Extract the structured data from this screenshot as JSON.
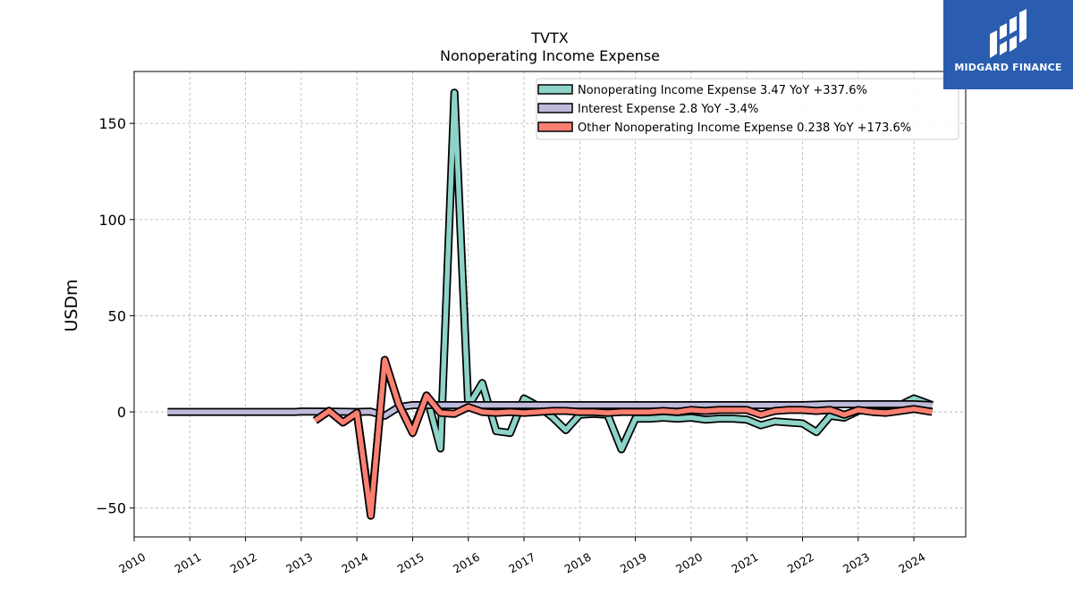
{
  "chart_data": {
    "type": "area",
    "title": "TVTX",
    "subtitle": "Nonoperating Income Expense",
    "ylabel": "USDm",
    "xlabel": "",
    "xlim": [
      2010.0,
      2024.93
    ],
    "ylim": [
      -65,
      177
    ],
    "yticks": [
      -50,
      0,
      50,
      100,
      150
    ],
    "ytick_labels": [
      "−50",
      "0",
      "50",
      "100",
      "150"
    ],
    "xticks": [
      2010,
      2011,
      2012,
      2013,
      2014,
      2015,
      2016,
      2017,
      2018,
      2019,
      2020,
      2021,
      2022,
      2023,
      2024
    ],
    "grid": true,
    "legend_position": "top-right",
    "series": [
      {
        "name": "Nonoperating Income Expense  3.47 YoY +337.6%",
        "color": "#8dd3c7",
        "points": [
          [
            2013.25,
            -4.5
          ],
          [
            2013.5,
            0.5
          ],
          [
            2013.75,
            -5.5
          ],
          [
            2014.0,
            -0.5
          ],
          [
            2014.25,
            -52
          ],
          [
            2014.5,
            26
          ],
          [
            2014.75,
            4
          ],
          [
            2015.0,
            -10
          ],
          [
            2015.25,
            8.5
          ],
          [
            2015.5,
            -19
          ],
          [
            2015.75,
            166
          ],
          [
            2016.0,
            3
          ],
          [
            2016.25,
            15
          ],
          [
            2016.5,
            -10
          ],
          [
            2016.75,
            -11
          ],
          [
            2017.0,
            7
          ],
          [
            2017.25,
            3
          ],
          [
            2017.5,
            -2.5
          ],
          [
            2017.75,
            -9.5
          ],
          [
            2018.0,
            -1.5
          ],
          [
            2018.25,
            -1
          ],
          [
            2018.5,
            -1.5
          ],
          [
            2018.75,
            -19.5
          ],
          [
            2019.0,
            -3.5
          ],
          [
            2019.25,
            -3.5
          ],
          [
            2019.5,
            -3
          ],
          [
            2019.75,
            -3.5
          ],
          [
            2020.0,
            -3
          ],
          [
            2020.25,
            -4
          ],
          [
            2020.5,
            -3.5
          ],
          [
            2020.75,
            -3.5
          ],
          [
            2021.0,
            -4
          ],
          [
            2021.25,
            -7
          ],
          [
            2021.5,
            -5
          ],
          [
            2021.75,
            -5.5
          ],
          [
            2022.0,
            -6
          ],
          [
            2022.25,
            -10.5
          ],
          [
            2022.5,
            -2
          ],
          [
            2022.75,
            -3
          ],
          [
            2023.0,
            0.5
          ],
          [
            2023.25,
            3
          ],
          [
            2023.5,
            3.5
          ],
          [
            2023.75,
            3.5
          ],
          [
            2024.0,
            7
          ],
          [
            2024.33,
            3.5
          ]
        ]
      },
      {
        "name": "Interest Expense  2.8 YoY -3.4%",
        "color": "#bebada",
        "points": [
          [
            2010.6,
            0
          ],
          [
            2011.0,
            0
          ],
          [
            2011.5,
            0
          ],
          [
            2012.0,
            0
          ],
          [
            2012.5,
            0
          ],
          [
            2012.9,
            0
          ],
          [
            2013.0,
            0.2
          ],
          [
            2013.5,
            0.1
          ],
          [
            2014.0,
            0
          ],
          [
            2014.25,
            0.1
          ],
          [
            2014.5,
            -2
          ],
          [
            2014.75,
            2.5
          ],
          [
            2015.0,
            3.5
          ],
          [
            2015.5,
            3.5
          ],
          [
            2016.0,
            3.5
          ],
          [
            2016.5,
            3.5
          ],
          [
            2017.0,
            3.5
          ],
          [
            2018.0,
            3.5
          ],
          [
            2019.0,
            3.5
          ],
          [
            2020.0,
            3.5
          ],
          [
            2021.0,
            3.5
          ],
          [
            2022.0,
            3.5
          ],
          [
            2022.5,
            4
          ],
          [
            2023.0,
            4
          ],
          [
            2023.5,
            4
          ],
          [
            2024.0,
            4
          ],
          [
            2024.33,
            3.5
          ]
        ]
      },
      {
        "name": "Other Nonoperating Income Expense  0.238 YoY +173.6%",
        "color": "#fb8072",
        "points": [
          [
            2013.25,
            -4.5
          ],
          [
            2013.5,
            0.5
          ],
          [
            2013.75,
            -5.5
          ],
          [
            2014.0,
            -0.5
          ],
          [
            2014.25,
            -54
          ],
          [
            2014.5,
            27
          ],
          [
            2014.75,
            4
          ],
          [
            2015.0,
            -11
          ],
          [
            2015.25,
            8.5
          ],
          [
            2015.5,
            -0.5
          ],
          [
            2015.75,
            -1
          ],
          [
            2016.0,
            2.5
          ],
          [
            2016.25,
            0
          ],
          [
            2016.5,
            -0.5
          ],
          [
            2016.75,
            0
          ],
          [
            2017.0,
            -0.5
          ],
          [
            2017.25,
            0
          ],
          [
            2017.5,
            0.5
          ],
          [
            2017.75,
            0.5
          ],
          [
            2018.0,
            0
          ],
          [
            2018.25,
            0
          ],
          [
            2018.5,
            -0.5
          ],
          [
            2018.75,
            0
          ],
          [
            2019.0,
            0
          ],
          [
            2019.25,
            0
          ],
          [
            2019.5,
            0.5
          ],
          [
            2019.75,
            0
          ],
          [
            2020.0,
            1
          ],
          [
            2020.25,
            0.5
          ],
          [
            2020.5,
            1
          ],
          [
            2020.75,
            1
          ],
          [
            2021.0,
            1
          ],
          [
            2021.25,
            -1.5
          ],
          [
            2021.5,
            0.5
          ],
          [
            2021.75,
            1
          ],
          [
            2022.0,
            1
          ],
          [
            2022.25,
            0.5
          ],
          [
            2022.5,
            1
          ],
          [
            2022.75,
            -1.5
          ],
          [
            2023.0,
            1
          ],
          [
            2023.25,
            0
          ],
          [
            2023.5,
            -0.5
          ],
          [
            2023.75,
            0.5
          ],
          [
            2024.0,
            1.5
          ],
          [
            2024.33,
            0
          ]
        ]
      }
    ]
  },
  "logo": {
    "text": "MIDGARD FINANCE",
    "color": "#2a5db0"
  }
}
